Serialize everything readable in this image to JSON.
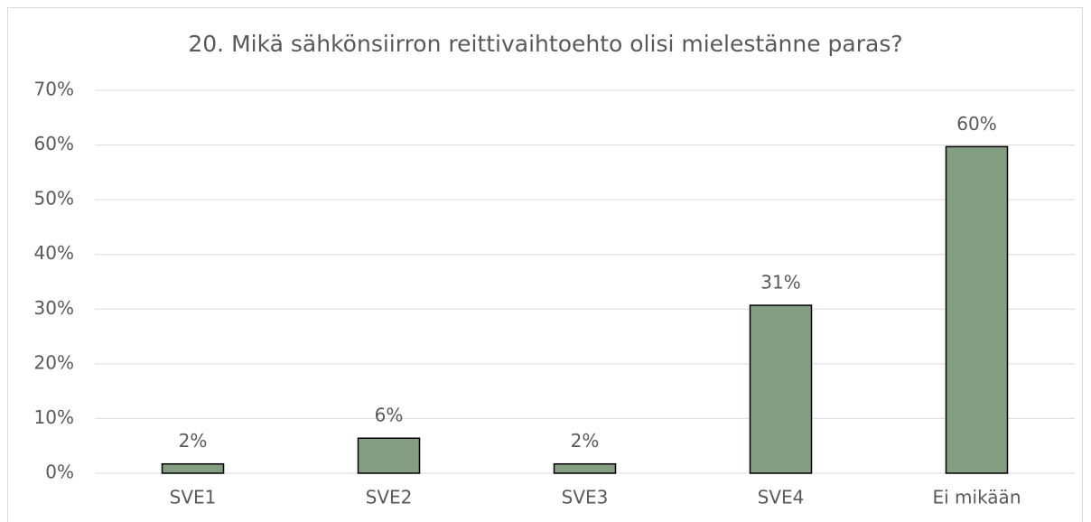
{
  "chart_data": {
    "type": "bar",
    "title": "20. Mikä sähkönsiirron reittivaihtoehto olisi mielestänne paras?",
    "categories": [
      "SVE1",
      "SVE2",
      "SVE3",
      "SVE4",
      "Ei mikään"
    ],
    "values": [
      1.7,
      6.4,
      1.7,
      30.7,
      59.7
    ],
    "value_labels": [
      "2%",
      "6%",
      "2%",
      "31%",
      "60%"
    ],
    "color": "#849e82",
    "ylim": [
      0,
      70
    ],
    "yticks": [
      {
        "value": 0,
        "label": "0%"
      },
      {
        "value": 10,
        "label": "10%"
      },
      {
        "value": 20,
        "label": "20%"
      },
      {
        "value": 30,
        "label": "30%"
      },
      {
        "value": 40,
        "label": "40%"
      },
      {
        "value": 50,
        "label": "50%"
      },
      {
        "value": 60,
        "label": "60%"
      },
      {
        "value": 70,
        "label": "70%"
      }
    ],
    "grid": true
  }
}
